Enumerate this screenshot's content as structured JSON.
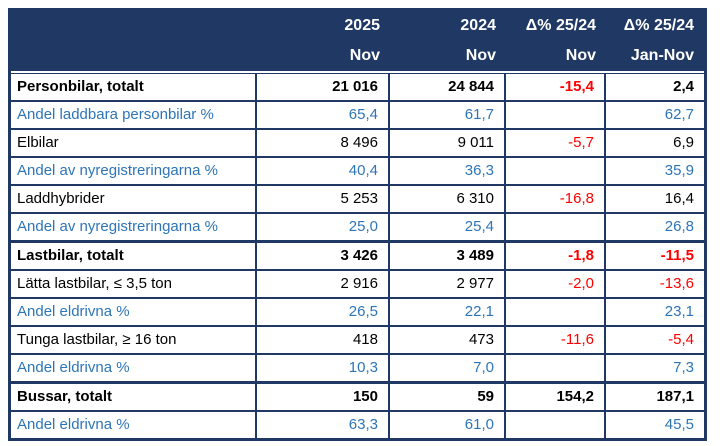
{
  "colors": {
    "header_background": "#1f3864",
    "border": "#1f3864",
    "share_row_text": "#2e75b6",
    "negative_value_text": "#ff0000",
    "normal_text": "#000000",
    "header_text": "#ffffff"
  },
  "table": {
    "header": {
      "row1": [
        "",
        "2025",
        "2024",
        "Δ% 25/24",
        "Δ% 25/24"
      ],
      "row2": [
        "",
        "Nov",
        "Nov",
        "Nov",
        "Jan-Nov"
      ]
    },
    "column_names": [
      "label",
      "value-2025-nov",
      "value-2024-nov",
      "value-delta-nov",
      "value-delta-jan-nov"
    ],
    "rows": [
      {
        "label": "Personbilar, totalt",
        "type": "total",
        "values": [
          "21 016",
          "24 844",
          "-15,4",
          "2,4"
        ]
      },
      {
        "label": "Andel laddbara personbilar %",
        "type": "share",
        "values": [
          "65,4",
          "61,7",
          "",
          "62,7"
        ]
      },
      {
        "label": "Elbilar",
        "type": "normal",
        "values": [
          "8 496",
          "9 011",
          "-5,7",
          "6,9"
        ]
      },
      {
        "label": "Andel av nyregistreringarna %",
        "type": "share",
        "values": [
          "40,4",
          "36,3",
          "",
          "35,9"
        ]
      },
      {
        "label": "Laddhybrider",
        "type": "normal",
        "values": [
          "5 253",
          "6 310",
          "-16,8",
          "16,4"
        ]
      },
      {
        "label": "Andel av nyregistreringarna %",
        "type": "share",
        "values": [
          "25,0",
          "25,4",
          "",
          "26,8"
        ]
      },
      {
        "label": "Lastbilar, totalt",
        "type": "total",
        "values": [
          "3 426",
          "3 489",
          "-1,8",
          "-11,5"
        ]
      },
      {
        "label": "Lätta lastbilar, ≤ 3,5 ton",
        "type": "normal",
        "values": [
          "2 916",
          "2 977",
          "-2,0",
          "-13,6"
        ]
      },
      {
        "label": "Andel eldrivna %",
        "type": "share",
        "values": [
          "26,5",
          "22,1",
          "",
          "23,1"
        ]
      },
      {
        "label": "Tunga lastbilar, ≥ 16 ton",
        "type": "normal",
        "values": [
          "418",
          "473",
          "-11,6",
          "-5,4"
        ]
      },
      {
        "label": "Andel eldrivna %",
        "type": "share",
        "values": [
          "10,3",
          "7,0",
          "",
          "7,3"
        ]
      },
      {
        "label": "Bussar, totalt",
        "type": "total",
        "values": [
          "150",
          "59",
          "154,2",
          "187,1"
        ]
      },
      {
        "label": "Andel eldrivna %",
        "type": "share",
        "values": [
          "63,3",
          "61,0",
          "",
          "45,5"
        ]
      }
    ]
  }
}
